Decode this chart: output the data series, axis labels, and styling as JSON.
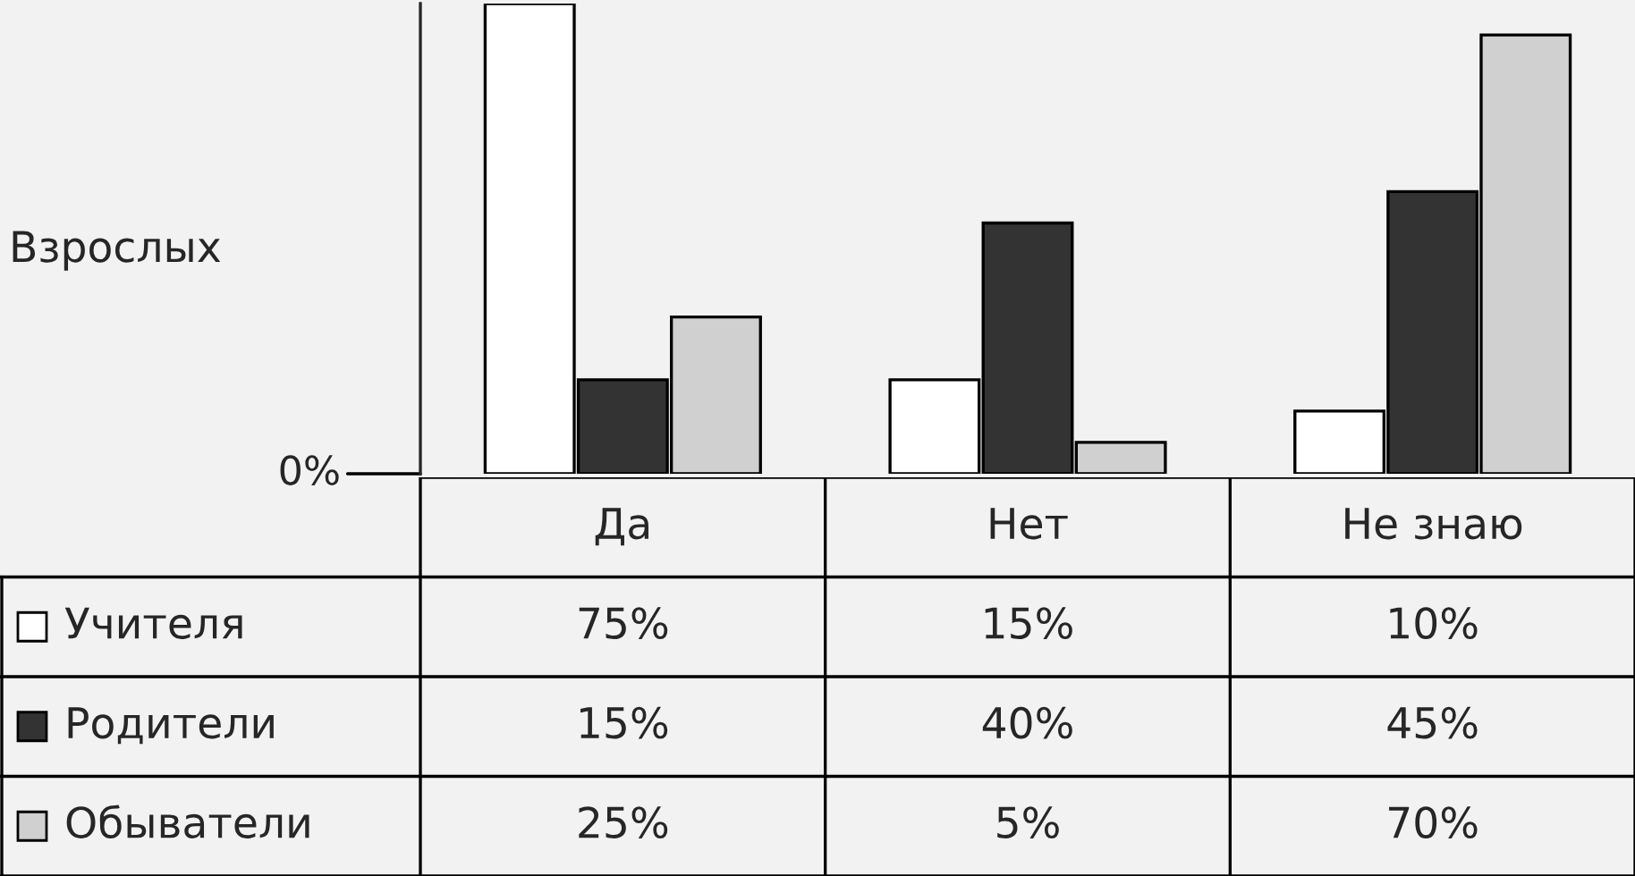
{
  "chart_data": {
    "type": "bar",
    "ylabel": "Взрослых",
    "categories": [
      "Да",
      "Нет",
      "Не знаю"
    ],
    "series": [
      {
        "name": "Учителя",
        "color": "#ffffff",
        "values": [
          75,
          15,
          10
        ],
        "value_labels": [
          "75%",
          "15%",
          "10%"
        ]
      },
      {
        "name": "Родители",
        "color": "#333333",
        "values": [
          15,
          40,
          45
        ],
        "value_labels": [
          "15%",
          "40%",
          "45%"
        ]
      },
      {
        "name": "Обыватели",
        "color": "#d0d0d0",
        "values": [
          25,
          5,
          70
        ],
        "value_labels": [
          "25%",
          "5%",
          "70%"
        ]
      }
    ],
    "ylim": [
      0,
      75
    ],
    "annotations": [
      "0%"
    ],
    "legend": "bottom left"
  }
}
